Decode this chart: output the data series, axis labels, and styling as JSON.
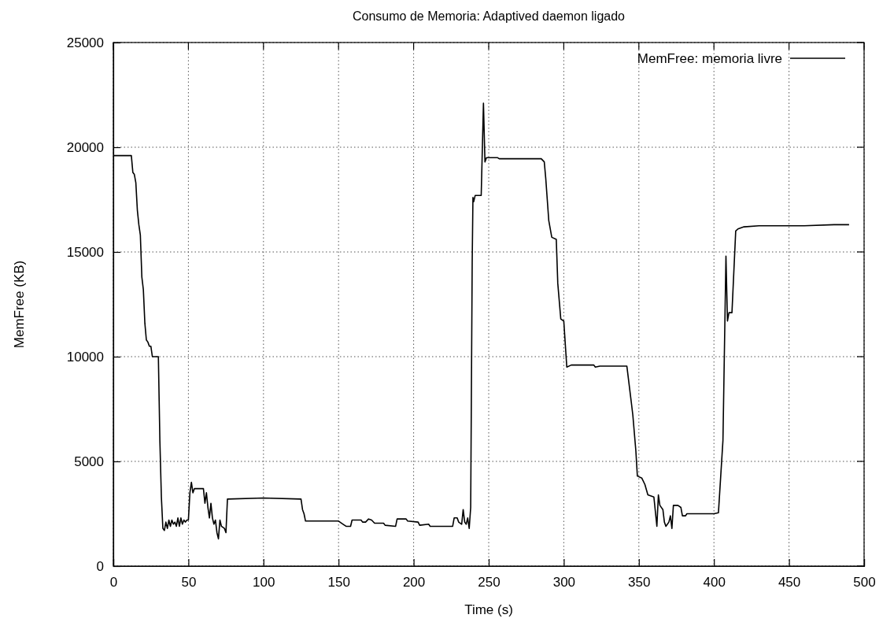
{
  "chart_data": {
    "type": "line",
    "title": "Consumo de Memoria: Adaptived daemon ligado",
    "xlabel": "Time (s)",
    "ylabel": "MemFree (KB)",
    "xlim": [
      0,
      500
    ],
    "xticks": [
      0,
      50,
      100,
      150,
      200,
      250,
      300,
      350,
      400,
      450,
      500
    ],
    "ylim": [
      0,
      25000
    ],
    "yticks": [
      0,
      5000,
      10000,
      15000,
      20000,
      25000
    ],
    "grid": true,
    "legend": "top right",
    "marker": "none",
    "line_style": "solid",
    "series": [
      {
        "name": "MemFree: memoria livre",
        "color": "#000000",
        "x": [
          0,
          12,
          13,
          14,
          15,
          16,
          17,
          18,
          19,
          20,
          21,
          22,
          23,
          24,
          25,
          26,
          30,
          31,
          32,
          33,
          34,
          35,
          36,
          37,
          38,
          39,
          40,
          41,
          42,
          43,
          44,
          45,
          46,
          47,
          48,
          49,
          50,
          51,
          52,
          53,
          54,
          60,
          61,
          62,
          63,
          64,
          65,
          66,
          67,
          68,
          69,
          70,
          71,
          72,
          74,
          75,
          76,
          100,
          125,
          126,
          127,
          128,
          150,
          153,
          155,
          158,
          159,
          165,
          166,
          168,
          170,
          172,
          174,
          180,
          181,
          188,
          189,
          195,
          196,
          203,
          204,
          210,
          211,
          219,
          226,
          227,
          229,
          230,
          232,
          233,
          234,
          235,
          236,
          237,
          238,
          239,
          239.5,
          240,
          241,
          245,
          246.5,
          247.5,
          248.5,
          256,
          257,
          285,
          287,
          288,
          290,
          292,
          295,
          296,
          298,
          300,
          302,
          305,
          320,
          321,
          324,
          342,
          345,
          346,
          348,
          349,
          352,
          354,
          356,
          360,
          362,
          363,
          364,
          366,
          367,
          368,
          370,
          371,
          372,
          373,
          376,
          378,
          379,
          381,
          382,
          400,
          403,
          406,
          408,
          409,
          410,
          412,
          414.5,
          416,
          420,
          430,
          460,
          480,
          490
        ],
        "values": [
          19600,
          19600,
          18800,
          18700,
          18300,
          17000,
          16300,
          15800,
          13800,
          13200,
          11600,
          10800,
          10700,
          10500,
          10500,
          10000,
          10000,
          6000,
          3300,
          1800,
          1700,
          2100,
          1800,
          2200,
          1900,
          2200,
          2000,
          2100,
          1900,
          2300,
          1900,
          2300,
          2000,
          2200,
          2100,
          2200,
          2200,
          3500,
          4000,
          3500,
          3700,
          3700,
          3000,
          3500,
          2800,
          2300,
          3000,
          2300,
          2000,
          2200,
          1600,
          1300,
          2200,
          1900,
          1800,
          1600,
          3200,
          3250,
          3200,
          2700,
          2500,
          2150,
          2150,
          2000,
          1900,
          1900,
          2200,
          2200,
          2100,
          2100,
          2250,
          2200,
          2050,
          2050,
          1950,
          1900,
          2250,
          2250,
          2150,
          2100,
          1950,
          2000,
          1900,
          1900,
          1900,
          2300,
          2300,
          2100,
          2000,
          2700,
          2100,
          2000,
          2300,
          1800,
          2800,
          14500,
          17600,
          17400,
          17700,
          17700,
          22100,
          19300,
          19500,
          19500,
          19450,
          19450,
          19300,
          18500,
          16500,
          15700,
          15600,
          13500,
          11800,
          11700,
          9500,
          9600,
          9600,
          9500,
          9550,
          9550,
          7800,
          7200,
          5500,
          4300,
          4200,
          3900,
          3400,
          3300,
          1900,
          3400,
          2900,
          2700,
          2100,
          1900,
          2100,
          2400,
          1800,
          2900,
          2900,
          2800,
          2400,
          2400,
          2500,
          2500,
          2550,
          6000,
          14800,
          11700,
          12100,
          12100,
          16000,
          16100,
          16200,
          16250,
          16250,
          16300,
          16300
        ]
      }
    ]
  }
}
